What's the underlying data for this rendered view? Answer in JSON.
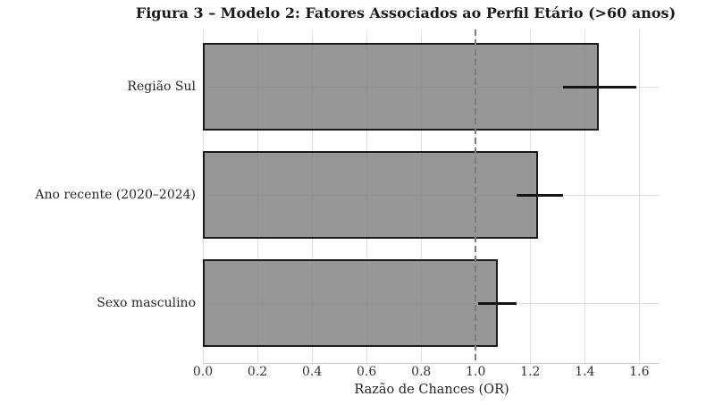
{
  "title": "Figura 3 – Modelo 2: Fatores Associados ao Perfil Etário (>60 anos)",
  "colors": {
    "bar_fill": "rgba(128,128,128,0.82)",
    "bar_edge": "#333333",
    "error_bar": "#141414",
    "reference_line": "#7d7d7d",
    "grid": "#e0e0e0",
    "spine": "#cccccc",
    "text": "#262626",
    "background": "#ffffff"
  },
  "chart_data": {
    "type": "bar",
    "orientation": "horizontal",
    "title": "Figura 3 – Modelo 2: Fatores Associados ao Perfil Etário (>60 anos)",
    "xlabel": "Razão de Chances (OR)",
    "ylabel": "",
    "categories": [
      "Região Sul",
      "Ano recente (2020–2024)",
      "Sexo masculino"
    ],
    "series": [
      {
        "name": "Razão de Chances (OR)",
        "values": [
          1.45,
          1.23,
          1.08
        ],
        "ci_low": [
          1.32,
          1.15,
          1.01
        ],
        "ci_high": [
          1.59,
          1.32,
          1.15
        ]
      }
    ],
    "reference_line_x": 1.0,
    "xlim": [
      0,
      1.674
    ],
    "xticks": [
      0.0,
      0.2,
      0.4,
      0.6,
      0.8,
      1.0,
      1.2,
      1.4,
      1.6
    ],
    "xtick_labels": [
      "0.0",
      "0.2",
      "0.4",
      "0.6",
      "0.8",
      "1.0",
      "1.2",
      "1.4",
      "1.6"
    ],
    "grid": true,
    "legend": false
  }
}
